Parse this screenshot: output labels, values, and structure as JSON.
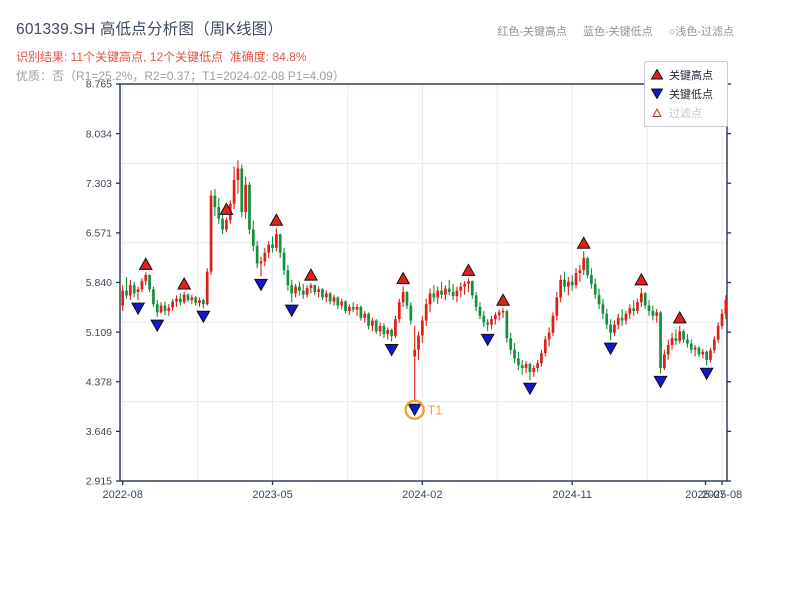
{
  "header": {
    "title": "601339.SH 高低点分析图（周K线图）",
    "result_line": "识别结果: 11个关键高点, 12个关键低点  准确度: 84.8%",
    "quality_line": "优质：否（R1=25.2%，R2=0.37；T1=2024-02-08 P1=4.09）"
  },
  "color_key": {
    "high": "红色-关键高点",
    "low": "蓝色-关键低点",
    "filtered": "○浅色-过滤点"
  },
  "legend": {
    "items": [
      {
        "label": "关键高点",
        "marker": "red-up-triangle"
      },
      {
        "label": "关键低点",
        "marker": "blue-down-triangle"
      },
      {
        "label": "过滤点",
        "marker": "hollow-up-triangle"
      }
    ]
  },
  "colors": {
    "candle_up": "#dd2016",
    "candle_down": "#11903e",
    "key_high_marker": "#ea1c1c",
    "key_low_marker": "#1515d3",
    "marker_edge": "#111111",
    "filtered_marker_edge": "#a04038",
    "filtered_marker_fill": "#fbeeea",
    "t1_accent": "#f0a12f",
    "grid": "#e9eaee",
    "frame": "#23344c",
    "axis_text": "#3b4656"
  },
  "chart_data": {
    "type": "candlestick",
    "title": "601339.SH 高低点分析图（周K线图）",
    "legend_position": "upper right",
    "grid": true,
    "ylim": [
      2.915,
      8.765
    ],
    "y_tick_labels": [
      "8.765",
      "8.034",
      "7.303",
      "6.571",
      "5.840",
      "5.109",
      "4.378",
      "3.646",
      "2.915"
    ],
    "y_gridline_values": [
      7.595,
      6.425,
      5.255,
      4.085
    ],
    "x_ticks": [
      {
        "label": "2022-08",
        "week": 0
      },
      {
        "label": "2023-05",
        "week": 39
      },
      {
        "label": "2024-02",
        "week": 78
      },
      {
        "label": "2024-11",
        "week": 117
      },
      {
        "label": "2025-07",
        "week": 151.7
      },
      {
        "label": "2025-08",
        "week": 156
      }
    ],
    "x_gridline_weeks": [
      0,
      19.5,
      39,
      58.5,
      78,
      97.5,
      117,
      136.5,
      156
    ],
    "key_high_weeks": [
      6,
      16,
      27,
      40,
      49,
      73,
      90,
      99,
      120,
      135,
      145
    ],
    "key_low_weeks": [
      4,
      9,
      21,
      36,
      44,
      70,
      76,
      95,
      106,
      127,
      140,
      152
    ],
    "t1": {
      "week": 76,
      "price": 4.09,
      "label": "T1",
      "date": "2024-02-08"
    },
    "candles": [
      [
        5.5,
        5.8,
        5.42,
        5.72
      ],
      [
        5.72,
        5.92,
        5.6,
        5.65
      ],
      [
        5.65,
        5.88,
        5.58,
        5.8
      ],
      [
        5.8,
        5.85,
        5.62,
        5.68
      ],
      [
        5.7,
        5.78,
        5.58,
        5.74
      ],
      [
        5.74,
        5.9,
        5.7,
        5.86
      ],
      [
        5.86,
        5.99,
        5.8,
        5.95
      ],
      [
        5.95,
        5.96,
        5.7,
        5.74
      ],
      [
        5.74,
        5.78,
        5.48,
        5.52
      ],
      [
        5.52,
        5.58,
        5.33,
        5.4
      ],
      [
        5.4,
        5.55,
        5.38,
        5.5
      ],
      [
        5.5,
        5.56,
        5.36,
        5.42
      ],
      [
        5.42,
        5.52,
        5.35,
        5.47
      ],
      [
        5.47,
        5.6,
        5.42,
        5.56
      ],
      [
        5.56,
        5.65,
        5.48,
        5.6
      ],
      [
        5.6,
        5.68,
        5.5,
        5.55
      ],
      [
        5.55,
        5.7,
        5.52,
        5.66
      ],
      [
        5.66,
        5.68,
        5.55,
        5.58
      ],
      [
        5.58,
        5.66,
        5.52,
        5.62
      ],
      [
        5.62,
        5.64,
        5.5,
        5.54
      ],
      [
        5.54,
        5.62,
        5.48,
        5.58
      ],
      [
        5.58,
        5.6,
        5.46,
        5.52
      ],
      [
        5.52,
        6.05,
        5.5,
        6.0
      ],
      [
        6.0,
        7.2,
        5.95,
        7.12
      ],
      [
        7.12,
        7.22,
        6.82,
        6.95
      ],
      [
        6.95,
        7.08,
        6.7,
        6.78
      ],
      [
        6.78,
        6.85,
        6.55,
        6.62
      ],
      [
        6.62,
        6.8,
        6.58,
        6.76
      ],
      [
        6.76,
        7.05,
        6.7,
        7.0
      ],
      [
        7.0,
        7.55,
        6.92,
        7.35
      ],
      [
        7.35,
        7.64,
        7.15,
        7.52
      ],
      [
        7.52,
        7.58,
        6.8,
        6.88
      ],
      [
        6.88,
        7.4,
        6.78,
        7.28
      ],
      [
        7.28,
        7.32,
        6.55,
        6.62
      ],
      [
        6.62,
        6.75,
        6.3,
        6.38
      ],
      [
        6.38,
        6.45,
        6.05,
        6.12
      ],
      [
        6.12,
        6.22,
        5.93,
        6.15
      ],
      [
        6.15,
        6.35,
        6.08,
        6.28
      ],
      [
        6.28,
        6.45,
        6.2,
        6.4
      ],
      [
        6.4,
        6.52,
        6.28,
        6.35
      ],
      [
        6.35,
        6.64,
        6.3,
        6.55
      ],
      [
        6.55,
        6.56,
        6.2,
        6.28
      ],
      [
        6.28,
        6.35,
        5.95,
        6.02
      ],
      [
        6.02,
        6.1,
        5.72,
        5.8
      ],
      [
        5.8,
        5.88,
        5.55,
        5.68
      ],
      [
        5.68,
        5.82,
        5.62,
        5.78
      ],
      [
        5.78,
        5.85,
        5.65,
        5.72
      ],
      [
        5.72,
        5.82,
        5.6,
        5.66
      ],
      [
        5.66,
        5.8,
        5.62,
        5.76
      ],
      [
        5.76,
        5.83,
        5.68,
        5.8
      ],
      [
        5.8,
        5.81,
        5.65,
        5.7
      ],
      [
        5.7,
        5.78,
        5.62,
        5.74
      ],
      [
        5.74,
        5.76,
        5.58,
        5.62
      ],
      [
        5.62,
        5.72,
        5.55,
        5.68
      ],
      [
        5.68,
        5.7,
        5.52,
        5.56
      ],
      [
        5.56,
        5.66,
        5.5,
        5.62
      ],
      [
        5.62,
        5.64,
        5.45,
        5.5
      ],
      [
        5.5,
        5.6,
        5.44,
        5.56
      ],
      [
        5.56,
        5.58,
        5.38,
        5.42
      ],
      [
        5.42,
        5.52,
        5.36,
        5.48
      ],
      [
        5.48,
        5.55,
        5.4,
        5.44
      ],
      [
        5.44,
        5.52,
        5.35,
        5.48
      ],
      [
        5.48,
        5.5,
        5.28,
        5.32
      ],
      [
        5.32,
        5.42,
        5.25,
        5.38
      ],
      [
        5.38,
        5.4,
        5.15,
        5.2
      ],
      [
        5.2,
        5.32,
        5.12,
        5.28
      ],
      [
        5.28,
        5.3,
        5.08,
        5.12
      ],
      [
        5.12,
        5.25,
        5.05,
        5.2
      ],
      [
        5.2,
        5.24,
        5.02,
        5.08
      ],
      [
        5.08,
        5.18,
        5.0,
        5.14
      ],
      [
        5.14,
        5.16,
        4.97,
        5.05
      ],
      [
        5.05,
        5.35,
        5.02,
        5.3
      ],
      [
        5.3,
        5.6,
        5.25,
        5.55
      ],
      [
        5.55,
        5.78,
        5.48,
        5.7
      ],
      [
        5.7,
        5.71,
        5.45,
        5.5
      ],
      [
        5.5,
        5.55,
        5.22,
        5.28
      ],
      [
        4.75,
        5.2,
        4.09,
        4.85
      ],
      [
        4.85,
        5.12,
        4.7,
        5.06
      ],
      [
        5.06,
        5.35,
        4.95,
        5.28
      ],
      [
        5.28,
        5.6,
        5.2,
        5.52
      ],
      [
        5.52,
        5.75,
        5.4,
        5.68
      ],
      [
        5.68,
        5.8,
        5.55,
        5.62
      ],
      [
        5.62,
        5.78,
        5.52,
        5.72
      ],
      [
        5.72,
        5.85,
        5.6,
        5.66
      ],
      [
        5.66,
        5.8,
        5.58,
        5.75
      ],
      [
        5.75,
        5.88,
        5.65,
        5.7
      ],
      [
        5.7,
        5.82,
        5.58,
        5.64
      ],
      [
        5.64,
        5.78,
        5.55,
        5.72
      ],
      [
        5.72,
        5.84,
        5.62,
        5.78
      ],
      [
        5.78,
        5.86,
        5.66,
        5.82
      ],
      [
        5.82,
        5.9,
        5.7,
        5.86
      ],
      [
        5.86,
        5.87,
        5.6,
        5.65
      ],
      [
        5.65,
        5.7,
        5.42,
        5.48
      ],
      [
        5.48,
        5.55,
        5.3,
        5.35
      ],
      [
        5.35,
        5.42,
        5.18,
        5.25
      ],
      [
        5.25,
        5.3,
        5.12,
        5.22
      ],
      [
        5.22,
        5.35,
        5.15,
        5.3
      ],
      [
        5.3,
        5.4,
        5.22,
        5.36
      ],
      [
        5.36,
        5.44,
        5.28,
        5.4
      ],
      [
        5.4,
        5.46,
        5.32,
        5.42
      ],
      [
        5.42,
        5.44,
        4.95,
        5.02
      ],
      [
        5.02,
        5.1,
        4.78,
        4.85
      ],
      [
        4.85,
        4.95,
        4.65,
        4.72
      ],
      [
        4.72,
        4.82,
        4.55,
        4.62
      ],
      [
        4.62,
        4.7,
        4.48,
        4.58
      ],
      [
        4.58,
        4.68,
        4.5,
        4.64
      ],
      [
        4.64,
        4.66,
        4.4,
        4.52
      ],
      [
        4.52,
        4.62,
        4.45,
        4.58
      ],
      [
        4.58,
        4.7,
        4.52,
        4.65
      ],
      [
        4.65,
        4.85,
        4.6,
        4.8
      ],
      [
        4.8,
        5.05,
        4.75,
        5.0
      ],
      [
        5.0,
        5.18,
        4.9,
        5.1
      ],
      [
        5.1,
        5.4,
        5.05,
        5.35
      ],
      [
        5.35,
        5.7,
        5.28,
        5.62
      ],
      [
        5.62,
        5.95,
        5.55,
        5.88
      ],
      [
        5.88,
        6.0,
        5.7,
        5.78
      ],
      [
        5.78,
        5.92,
        5.65,
        5.85
      ],
      [
        5.85,
        5.95,
        5.72,
        5.8
      ],
      [
        5.8,
        6.05,
        5.75,
        5.98
      ],
      [
        5.98,
        6.1,
        5.85,
        6.02
      ],
      [
        6.02,
        6.3,
        5.95,
        6.2
      ],
      [
        6.2,
        6.22,
        5.9,
        5.95
      ],
      [
        5.95,
        6.05,
        5.75,
        5.82
      ],
      [
        5.82,
        5.9,
        5.6,
        5.66
      ],
      [
        5.66,
        5.75,
        5.45,
        5.52
      ],
      [
        5.52,
        5.6,
        5.3,
        5.38
      ],
      [
        5.38,
        5.45,
        5.15,
        5.22
      ],
      [
        5.22,
        5.3,
        4.99,
        5.1
      ],
      [
        5.1,
        5.28,
        5.05,
        5.22
      ],
      [
        5.22,
        5.38,
        5.15,
        5.32
      ],
      [
        5.32,
        5.45,
        5.2,
        5.28
      ],
      [
        5.28,
        5.42,
        5.22,
        5.38
      ],
      [
        5.38,
        5.52,
        5.3,
        5.46
      ],
      [
        5.46,
        5.58,
        5.35,
        5.42
      ],
      [
        5.42,
        5.6,
        5.38,
        5.55
      ],
      [
        5.55,
        5.76,
        5.48,
        5.68
      ],
      [
        5.68,
        5.7,
        5.45,
        5.5
      ],
      [
        5.5,
        5.58,
        5.35,
        5.42
      ],
      [
        5.42,
        5.5,
        5.28,
        5.35
      ],
      [
        5.35,
        5.45,
        5.25,
        5.4
      ],
      [
        5.4,
        5.42,
        4.5,
        4.58
      ],
      [
        4.58,
        4.85,
        4.55,
        4.78
      ],
      [
        4.78,
        5.0,
        4.7,
        4.92
      ],
      [
        4.92,
        5.1,
        4.85,
        5.02
      ],
      [
        5.02,
        5.15,
        4.92,
        4.98
      ],
      [
        4.98,
        5.2,
        4.94,
        5.12
      ],
      [
        5.12,
        5.15,
        4.95,
        5.0
      ],
      [
        5.0,
        5.08,
        4.88,
        4.94
      ],
      [
        4.94,
        5.0,
        4.8,
        4.85
      ],
      [
        4.85,
        4.92,
        4.75,
        4.88
      ],
      [
        4.88,
        4.9,
        4.74,
        4.78
      ],
      [
        4.78,
        4.86,
        4.72,
        4.82
      ],
      [
        4.82,
        4.84,
        4.62,
        4.7
      ],
      [
        4.7,
        4.88,
        4.66,
        4.84
      ],
      [
        4.84,
        5.05,
        4.8,
        5.0
      ],
      [
        5.0,
        5.25,
        4.95,
        5.2
      ],
      [
        5.2,
        5.45,
        5.15,
        5.38
      ],
      [
        5.38,
        5.65,
        5.3,
        5.58
      ]
    ]
  }
}
